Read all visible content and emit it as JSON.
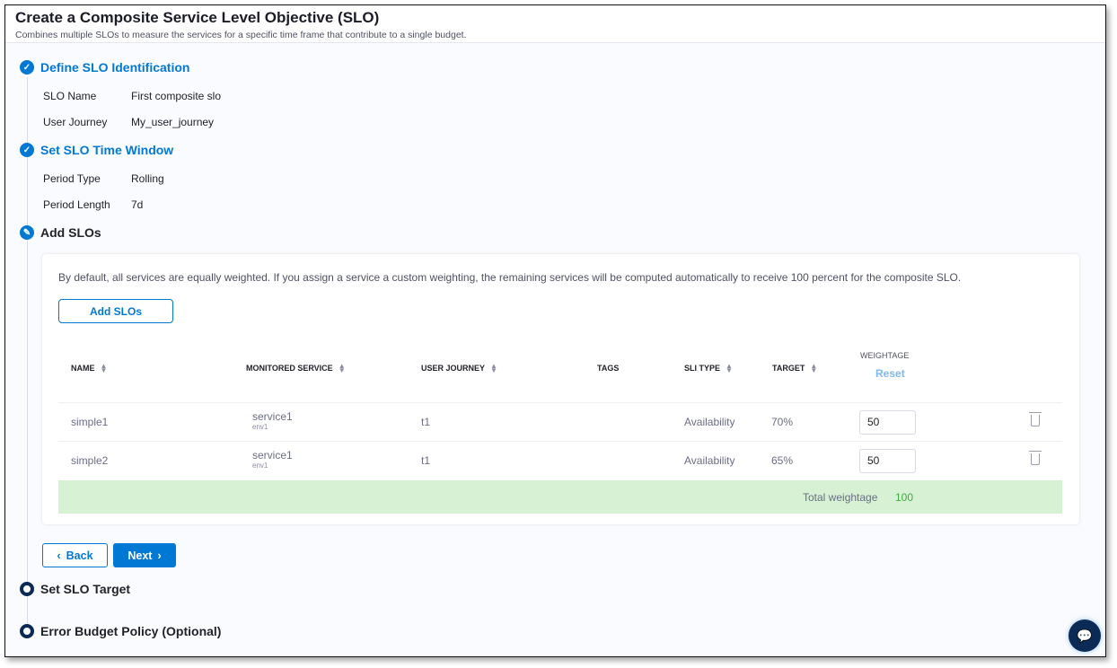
{
  "header": {
    "title": "Create a Composite Service Level Objective (SLO)",
    "subtitle": "Combines multiple SLOs to measure the services for a specific time frame that contribute to a single budget."
  },
  "steps": [
    {
      "label": "Define SLO Identification",
      "status": "completed",
      "fields": [
        {
          "key": "SLO Name",
          "value": "First composite slo"
        },
        {
          "key": "User Journey",
          "value": "My_user_journey"
        }
      ]
    },
    {
      "label": "Set SLO Time Window",
      "status": "completed",
      "fields": [
        {
          "key": "Period Type",
          "value": "Rolling"
        },
        {
          "key": "Period Length",
          "value": "7d"
        }
      ]
    },
    {
      "label": "Add SLOs",
      "status": "active"
    },
    {
      "label": "Set SLO Target",
      "status": "pending"
    },
    {
      "label": "Error Budget Policy (Optional)",
      "status": "pending"
    }
  ],
  "add_slos": {
    "info": "By default, all services are equally weighted. If you assign a service a custom weighting, the remaining services will be computed automatically to receive 100 percent for the composite SLO.",
    "add_button": "Add SLOs",
    "columns": {
      "name": "NAME",
      "monitored_service": "MONITORED SERVICE",
      "user_journey": "USER JOURNEY",
      "tags": "TAGS",
      "sli_type": "SLI TYPE",
      "target": "TARGET",
      "weightage": "WEIGHTAGE",
      "reset": "Reset"
    },
    "rows": [
      {
        "name": "simple1",
        "service": "service1",
        "env": "env1",
        "user_journey": "t1",
        "tags": "",
        "sli_type": "Availability",
        "target": "70%",
        "weightage": "50"
      },
      {
        "name": "simple2",
        "service": "service1",
        "env": "env1",
        "user_journey": "t1",
        "tags": "",
        "sli_type": "Availability",
        "target": "65%",
        "weightage": "50"
      }
    ],
    "total_label": "Total weightage",
    "total_value": "100"
  },
  "nav": {
    "back": "Back",
    "next": "Next"
  },
  "colors": {
    "accent": "#0278d5",
    "success_bg": "#d7f1d4",
    "success_text": "#3dab3d",
    "navy": "#0b2a55"
  }
}
